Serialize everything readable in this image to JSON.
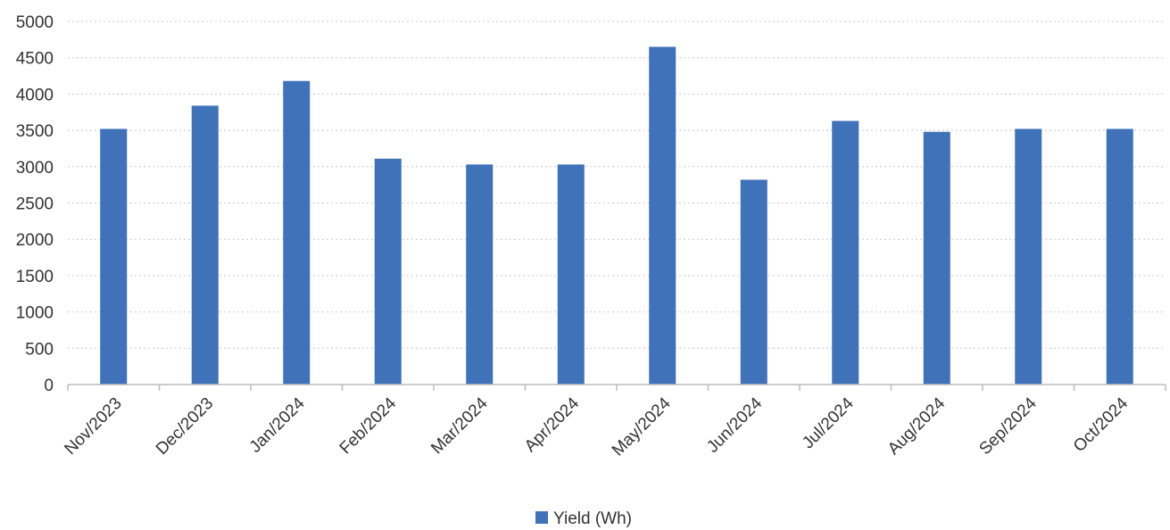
{
  "chart_data": {
    "type": "bar",
    "categories": [
      "Nov/2023",
      "Dec/2023",
      "Jan/2024",
      "Feb/2024",
      "Mar/2024",
      "Apr/2024",
      "May/2024",
      "Jun/2024",
      "Jul/2024",
      "Aug/2024",
      "Sep/2024",
      "Oct/2024"
    ],
    "series": [
      {
        "name": "Yield (Wh)",
        "values": [
          3520,
          3840,
          4180,
          3110,
          3030,
          3030,
          4650,
          2820,
          3630,
          3480,
          3520,
          3520
        ],
        "color": "#3f72b9"
      }
    ],
    "y_ticks": [
      "0",
      "500",
      "1000",
      "1500",
      "2000",
      "2500",
      "3000",
      "3500",
      "4000",
      "4500",
      "5000"
    ],
    "ylim": [
      0,
      5000
    ],
    "grid": true,
    "legend": "bottom-center"
  }
}
